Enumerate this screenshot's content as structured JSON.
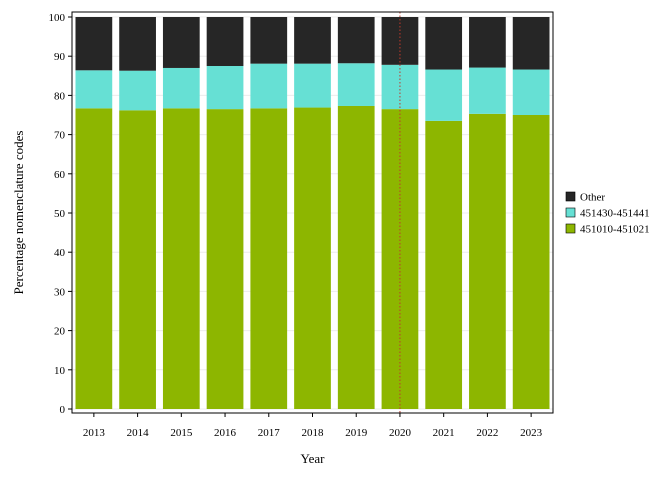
{
  "chart_data": {
    "type": "bar",
    "stacked": true,
    "categories": [
      "2013",
      "2014",
      "2015",
      "2016",
      "2017",
      "2018",
      "2019",
      "2020",
      "2021",
      "2022",
      "2023"
    ],
    "series": [
      {
        "name": "451010-451021",
        "color": "#8db600",
        "values": [
          76.7,
          76.2,
          76.7,
          76.5,
          76.7,
          76.9,
          77.3,
          76.5,
          73.5,
          75.3,
          75.0
        ]
      },
      {
        "name": "451430-451441",
        "color": "#66e0d4",
        "values": [
          9.7,
          10.1,
          10.3,
          11.0,
          11.4,
          11.2,
          10.9,
          11.3,
          13.1,
          11.8,
          11.6
        ]
      },
      {
        "name": "Other",
        "color": "#262626",
        "values": [
          13.6,
          13.7,
          13.0,
          12.5,
          11.9,
          11.9,
          11.8,
          12.2,
          13.4,
          12.9,
          13.4
        ]
      }
    ],
    "xlabel": "Year",
    "ylabel": "Percentage nomenclature codes",
    "ylim": [
      0,
      100
    ],
    "yticks": [
      0,
      10,
      20,
      30,
      40,
      50,
      60,
      70,
      80,
      90,
      100
    ],
    "reference_line": {
      "x": "2020",
      "color": "#c0392b",
      "style": "dotted"
    },
    "grid": true,
    "legend": {
      "position": "right",
      "order": [
        "Other",
        "451430-451441",
        "451010-451021"
      ]
    }
  }
}
